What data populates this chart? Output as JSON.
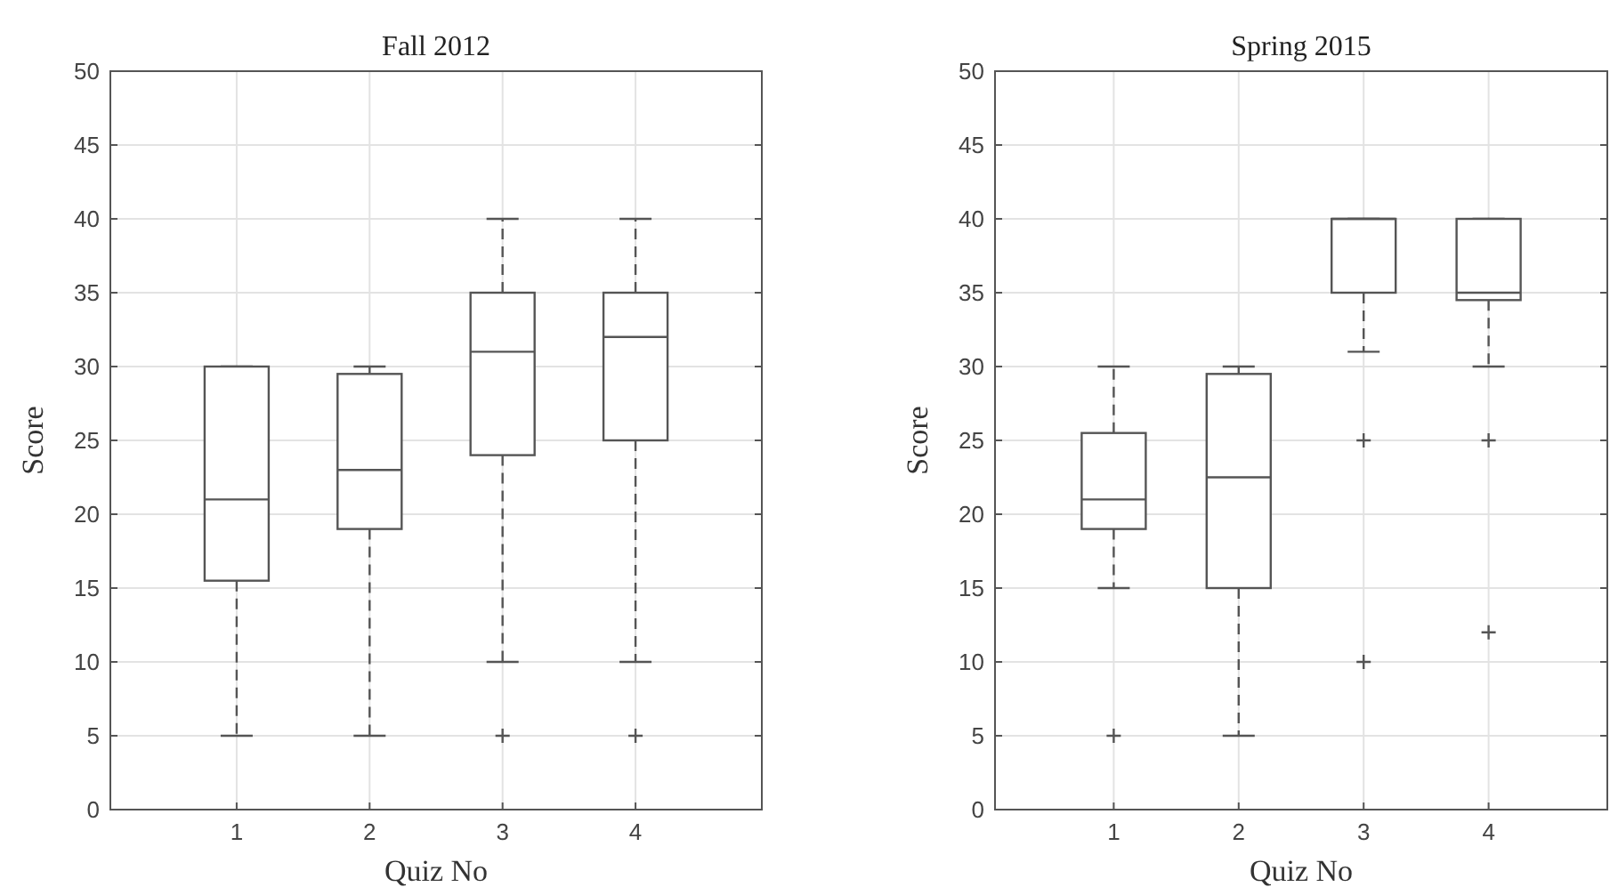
{
  "chart_data": [
    {
      "type": "box",
      "title": "Fall 2012",
      "xlabel": "Quiz No",
      "ylabel": "Score",
      "categories": [
        "1",
        "2",
        "3",
        "4"
      ],
      "color": "#555555",
      "marker": "cross",
      "grid": true,
      "ylim": [
        0,
        50
      ],
      "yticks": [
        0,
        5,
        10,
        15,
        20,
        25,
        30,
        35,
        40,
        45,
        50
      ],
      "boxes": [
        {
          "low": 5,
          "q1": 15.5,
          "median": 21,
          "q3": 30,
          "high": 30
        },
        {
          "low": 5,
          "q1": 19,
          "median": 23,
          "q3": 29.5,
          "high": 30
        },
        {
          "low": 10,
          "q1": 24,
          "median": 31,
          "q3": 35,
          "high": 40,
          "outliers": [
            5
          ]
        },
        {
          "low": 10,
          "q1": 25,
          "median": 32,
          "q3": 35,
          "high": 40,
          "outliers": [
            5
          ]
        }
      ]
    },
    {
      "type": "box",
      "title": "Spring 2015",
      "xlabel": "Quiz No",
      "ylabel": "Score",
      "categories": [
        "1",
        "2",
        "3",
        "4"
      ],
      "color": "#555555",
      "marker": "cross",
      "grid": true,
      "ylim": [
        0,
        50
      ],
      "yticks": [
        0,
        5,
        10,
        15,
        20,
        25,
        30,
        35,
        40,
        45,
        50
      ],
      "boxes": [
        {
          "low": 15,
          "q1": 19,
          "median": 21,
          "q3": 25.5,
          "high": 30,
          "outliers": [
            5
          ]
        },
        {
          "low": 5,
          "q1": 15,
          "median": 22.5,
          "q3": 29.5,
          "high": 30
        },
        {
          "low": 31,
          "q1": 35,
          "median": 40,
          "q3": 40,
          "high": 40,
          "outliers": [
            25,
            10
          ]
        },
        {
          "low": 30,
          "q1": 34.5,
          "median": 35,
          "q3": 40,
          "high": 40,
          "outliers": [
            25,
            12
          ]
        }
      ]
    }
  ]
}
